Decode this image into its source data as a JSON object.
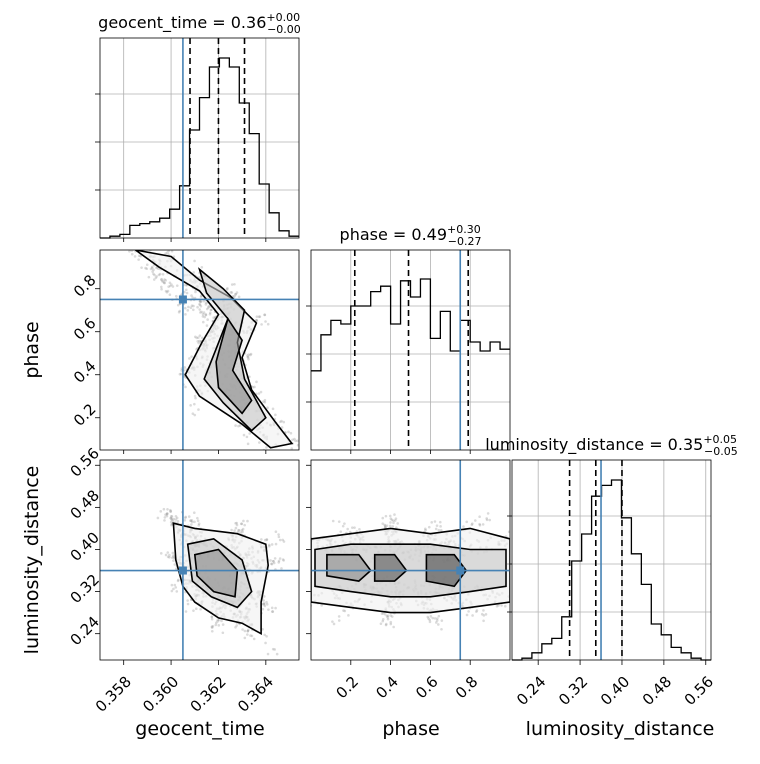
{
  "chart_data": {
    "type": "corner",
    "grid": true,
    "parameters": [
      "geocent_time",
      "phase",
      "luminosity_distance"
    ],
    "truth_color": "#4682b4",
    "truths": {
      "geocent_time": 0.3605,
      "phase": 0.75,
      "luminosity_distance": 0.36
    },
    "titles": [
      {
        "param": "geocent_time",
        "text": "geocent_time = 0.36",
        "sup": "+0.00",
        "sub": "−0.00"
      },
      {
        "param": "phase",
        "text": "phase = 0.49",
        "sup": "+0.30",
        "sub": "−0.27"
      },
      {
        "param": "luminosity_distance",
        "text": "luminosity_distance = 0.35",
        "sup": "+0.05",
        "sub": "−0.05"
      }
    ],
    "ranges": {
      "geocent_time": [
        0.357,
        0.3654
      ],
      "phase": [
        0.0,
        1.0
      ],
      "luminosity_distance": [
        0.19,
        0.57
      ],
      "phase_y": [
        0.05,
        0.98
      ]
    },
    "ticks": {
      "geocent_time": [
        "0.358",
        "0.360",
        "0.362",
        "0.364"
      ],
      "phase": [
        "0.2",
        "0.4",
        "0.6",
        "0.8"
      ],
      "luminosity_distance": [
        "0.24",
        "0.32",
        "0.40",
        "0.48",
        "0.56"
      ]
    },
    "quantiles": {
      "geocent_time": [
        0.3608,
        0.362,
        0.3631
      ],
      "phase": [
        0.22,
        0.49,
        0.79
      ],
      "luminosity_distance": [
        0.3,
        0.35,
        0.4
      ]
    },
    "histograms": {
      "geocent_time": {
        "edges_start": 0.357,
        "bin_width": 0.00042,
        "counts": [
          0,
          0.01,
          0.02,
          0.07,
          0.08,
          0.09,
          0.11,
          0.16,
          0.29,
          0.6,
          0.78,
          0.95,
          1.0,
          0.95,
          0.75,
          0.58,
          0.3,
          0.14,
          0.04,
          0.01
        ]
      },
      "phase": {
        "edges_start": 0.0,
        "bin_width": 0.05,
        "counts": [
          0.44,
          0.64,
          0.72,
          0.7,
          0.8,
          0.8,
          0.88,
          0.91,
          0.7,
          0.94,
          0.85,
          0.95,
          0.62,
          0.77,
          0.55,
          0.72,
          0.6,
          0.55,
          0.6,
          0.56
        ]
      },
      "luminosity_distance": {
        "edges_start": 0.19,
        "bin_width": 0.019,
        "counts": [
          0,
          0.01,
          0.04,
          0.09,
          0.12,
          0.24,
          0.55,
          0.7,
          0.91,
          0.97,
          1.0,
          0.79,
          0.59,
          0.42,
          0.2,
          0.14,
          0.07,
          0.04,
          0.01,
          0
        ]
      }
    },
    "panels": [
      {
        "x": "geocent_time",
        "y": "phase",
        "contours": [
          [
            [
              0.3585,
              0.98
            ],
            [
              0.36,
              0.95
            ],
            [
              0.3612,
              0.84
            ],
            [
              0.3625,
              0.76
            ],
            [
              0.3636,
              0.64
            ],
            [
              0.363,
              0.48
            ],
            [
              0.3634,
              0.33
            ],
            [
              0.3644,
              0.18
            ],
            [
              0.3651,
              0.08
            ],
            [
              0.3642,
              0.06
            ],
            [
              0.363,
              0.17
            ],
            [
              0.3612,
              0.3
            ],
            [
              0.3606,
              0.4
            ],
            [
              0.3613,
              0.55
            ],
            [
              0.362,
              0.68
            ],
            [
              0.3612,
              0.79
            ],
            [
              0.3595,
              0.9
            ],
            [
              0.3585,
              0.98
            ]
          ],
          [
            [
              0.3612,
              0.89
            ],
            [
              0.3622,
              0.8
            ],
            [
              0.3631,
              0.7
            ],
            [
              0.3628,
              0.55
            ],
            [
              0.3631,
              0.38
            ],
            [
              0.364,
              0.2
            ],
            [
              0.3634,
              0.14
            ],
            [
              0.3622,
              0.27
            ],
            [
              0.3614,
              0.38
            ],
            [
              0.3619,
              0.52
            ],
            [
              0.3624,
              0.66
            ],
            [
              0.3615,
              0.78
            ],
            [
              0.3612,
              0.89
            ]
          ],
          [
            [
              0.3624,
              0.66
            ],
            [
              0.363,
              0.56
            ],
            [
              0.3626,
              0.42
            ],
            [
              0.3634,
              0.28
            ],
            [
              0.363,
              0.22
            ],
            [
              0.362,
              0.34
            ],
            [
              0.3619,
              0.46
            ],
            [
              0.3624,
              0.66
            ]
          ]
        ]
      },
      {
        "x": "geocent_time",
        "y": "luminosity_distance",
        "contours": [
          [
            [
              0.3601,
              0.45
            ],
            [
              0.361,
              0.44
            ],
            [
              0.3628,
              0.43
            ],
            [
              0.364,
              0.41
            ],
            [
              0.3641,
              0.37
            ],
            [
              0.3638,
              0.3
            ],
            [
              0.3638,
              0.24
            ],
            [
              0.363,
              0.26
            ],
            [
              0.362,
              0.27
            ],
            [
              0.361,
              0.3
            ],
            [
              0.3605,
              0.33
            ],
            [
              0.3602,
              0.38
            ],
            [
              0.3601,
              0.45
            ]
          ],
          [
            [
              0.3607,
              0.41
            ],
            [
              0.3618,
              0.42
            ],
            [
              0.363,
              0.38
            ],
            [
              0.3634,
              0.32
            ],
            [
              0.3628,
              0.29
            ],
            [
              0.3617,
              0.31
            ],
            [
              0.3609,
              0.34
            ],
            [
              0.3607,
              0.41
            ]
          ],
          [
            [
              0.361,
              0.39
            ],
            [
              0.362,
              0.4
            ],
            [
              0.3628,
              0.36
            ],
            [
              0.3627,
              0.31
            ],
            [
              0.3618,
              0.32
            ],
            [
              0.3611,
              0.35
            ],
            [
              0.361,
              0.39
            ]
          ]
        ]
      },
      {
        "x": "phase",
        "y": "luminosity_distance",
        "contours": [
          [
            [
              0.0,
              0.42
            ],
            [
              0.2,
              0.43
            ],
            [
              0.4,
              0.44
            ],
            [
              0.6,
              0.43
            ],
            [
              0.8,
              0.44
            ],
            [
              1.0,
              0.42
            ],
            [
              1.0,
              0.3
            ],
            [
              0.8,
              0.29
            ],
            [
              0.6,
              0.28
            ],
            [
              0.4,
              0.28
            ],
            [
              0.2,
              0.29
            ],
            [
              0.0,
              0.3
            ],
            [
              0.0,
              0.42
            ]
          ],
          [
            [
              0.02,
              0.4
            ],
            [
              0.2,
              0.41
            ],
            [
              0.4,
              0.41
            ],
            [
              0.6,
              0.41
            ],
            [
              0.8,
              0.4
            ],
            [
              0.98,
              0.4
            ],
            [
              0.98,
              0.33
            ],
            [
              0.8,
              0.32
            ],
            [
              0.6,
              0.31
            ],
            [
              0.4,
              0.31
            ],
            [
              0.2,
              0.32
            ],
            [
              0.02,
              0.33
            ],
            [
              0.02,
              0.4
            ]
          ],
          [
            [
              0.08,
              0.39
            ],
            [
              0.24,
              0.39
            ],
            [
              0.3,
              0.36
            ],
            [
              0.24,
              0.34
            ],
            [
              0.08,
              0.35
            ],
            [
              0.08,
              0.39
            ]
          ],
          [
            [
              0.32,
              0.39
            ],
            [
              0.42,
              0.39
            ],
            [
              0.48,
              0.36
            ],
            [
              0.42,
              0.34
            ],
            [
              0.32,
              0.34
            ],
            [
              0.32,
              0.39
            ]
          ],
          [
            [
              0.58,
              0.39
            ],
            [
              0.72,
              0.39
            ],
            [
              0.78,
              0.36
            ],
            [
              0.72,
              0.33
            ],
            [
              0.58,
              0.34
            ],
            [
              0.58,
              0.39
            ]
          ]
        ]
      }
    ],
    "xlabels": [
      "geocent_time",
      "phase",
      "luminosity_distance"
    ],
    "ylabels": [
      "phase",
      "luminosity_distance"
    ]
  }
}
